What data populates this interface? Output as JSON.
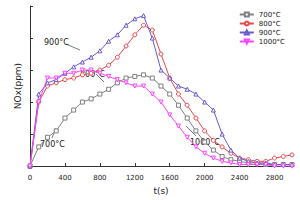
{
  "chart_data": {
    "type": "line",
    "x_label": "t(s)",
    "y_label": "NOx(ppm)",
    "x": [
      0,
      100,
      200,
      300,
      400,
      500,
      600,
      700,
      800,
      900,
      1000,
      1100,
      1200,
      1300,
      1400,
      1500,
      1600,
      1700,
      1800,
      1900,
      2000,
      2100,
      2200,
      2300,
      2400,
      2500,
      2600,
      2700,
      2800,
      2900,
      3000
    ],
    "series": [
      {
        "name": "700°C",
        "color": "#808080",
        "marker": "square",
        "values": [
          0,
          12,
          18,
          22,
          30,
          35,
          40,
          42,
          45,
          48,
          52,
          55,
          56,
          57,
          55,
          50,
          45,
          38,
          30,
          22,
          15,
          10,
          6,
          4,
          3,
          2,
          2,
          1,
          1,
          1,
          1
        ]
      },
      {
        "name": "800°C",
        "color": "#e8474c",
        "marker": "circle",
        "values": [
          0,
          40,
          50,
          52,
          54,
          55,
          57,
          58,
          60,
          63,
          68,
          75,
          82,
          88,
          85,
          70,
          55,
          45,
          38,
          30,
          22,
          16,
          12,
          8,
          5,
          4,
          3,
          3,
          5,
          6,
          7
        ]
      },
      {
        "name": "900°C",
        "color": "#6a5acd",
        "marker": "triangle",
        "values": [
          0,
          45,
          52,
          54,
          58,
          62,
          65,
          68,
          72,
          78,
          82,
          88,
          92,
          94,
          80,
          60,
          55,
          50,
          48,
          45,
          40,
          35,
          20,
          10,
          5,
          3,
          2,
          2,
          1,
          1,
          1
        ]
      },
      {
        "name": "1000°C",
        "color": "#ff44ff",
        "marker": "triangle_down",
        "values": [
          0,
          40,
          55,
          55,
          58,
          58,
          60,
          60,
          58,
          56,
          54,
          52,
          50,
          50,
          45,
          40,
          32,
          25,
          18,
          12,
          8,
          5,
          3,
          2,
          1,
          1,
          1,
          1,
          0,
          0,
          0
        ]
      }
    ],
    "annotations": [
      "900°C",
      "800°C",
      "700°C",
      "1000°C"
    ],
    "xlim": [
      0,
      3000
    ],
    "xticks": [
      0,
      400,
      800,
      1200,
      1600,
      2000,
      2400,
      2800
    ],
    "ylim": [
      0,
      100
    ],
    "yticks": [
      0,
      20,
      40,
      60,
      80,
      100
    ],
    "tick_labels": "x",
    "legend": "upper right",
    "grid": false
  }
}
